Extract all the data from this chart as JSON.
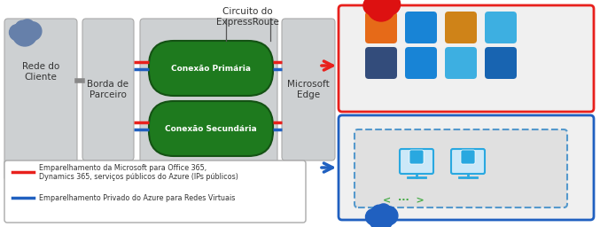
{
  "bg_color": "#ffffff",
  "legend_red_text1": "Emparelhamento da Microsoft para Office 365,",
  "legend_red_text2": "Dynamics 365, serviços públicos do Azure (IPs públicos)",
  "legend_blue_text": "Emparelhamento Privado do Azure para Redes Virtuais",
  "red_color": "#e8201c",
  "blue_color": "#2060c0",
  "green_dark": "#1e7a1e",
  "green_edge": "#145214",
  "gray_box": "#cdd0d2",
  "gray_border": "#aaaaaa",
  "customer_label": "Rede do\nCliente",
  "partner_label": "Borda de\nParceiro",
  "edge_label": "Microsoft\nEdge",
  "circuit_label": "Circuito do\nExpressRoute",
  "primary_label": "Conexão Primária",
  "secondary_label": "Conexão Secundária"
}
